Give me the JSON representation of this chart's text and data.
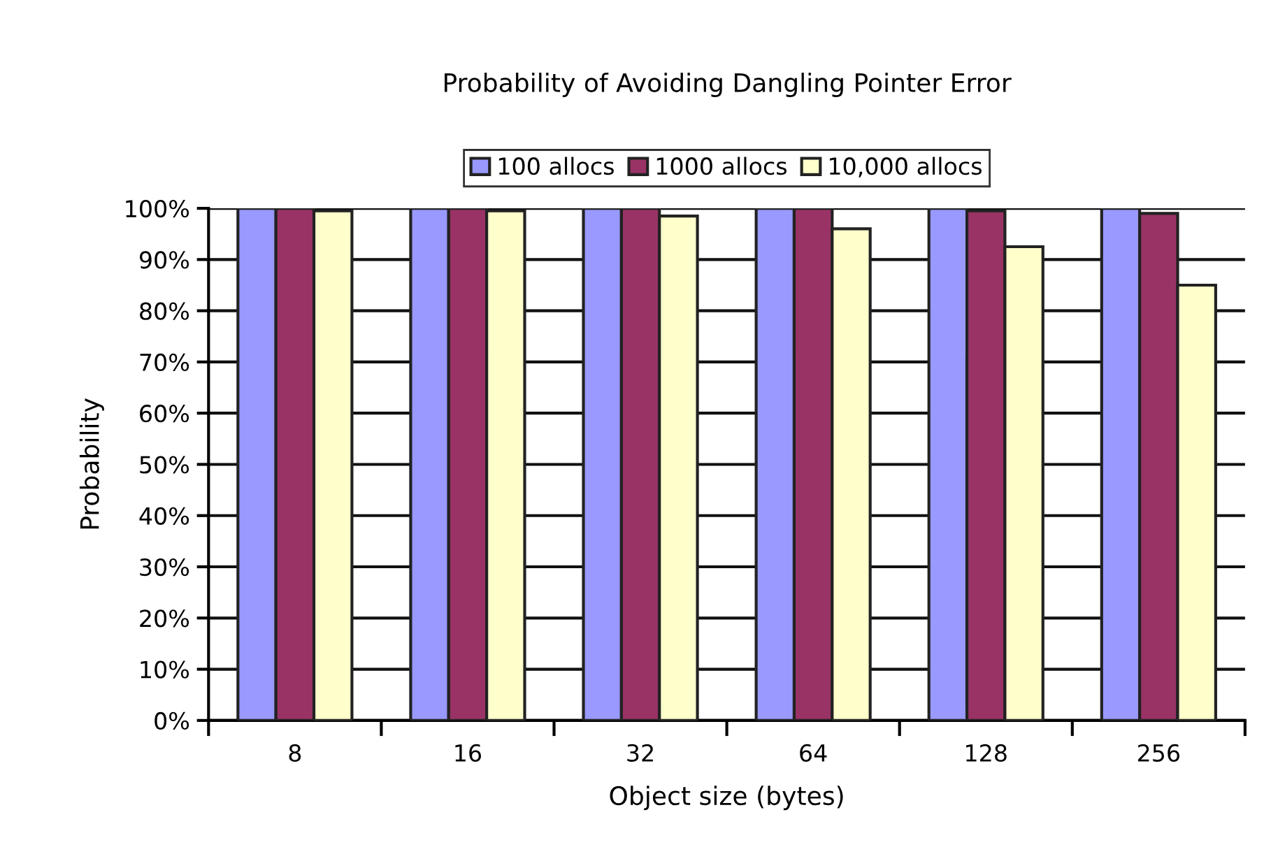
{
  "chart_data": {
    "type": "bar",
    "title": "Probability of Avoiding Dangling Pointer Error",
    "xlabel": "Object size (bytes)",
    "ylabel": "Probability",
    "categories": [
      "8",
      "16",
      "32",
      "64",
      "128",
      "256"
    ],
    "series": [
      {
        "name": "100 allocs",
        "color": "#9999ff",
        "values": [
          100,
          100,
          100,
          100,
          100,
          100
        ]
      },
      {
        "name": "1000 allocs",
        "color": "#993366",
        "values": [
          100,
          100,
          100,
          100,
          99.5,
          99
        ]
      },
      {
        "name": "10,000 allocs",
        "color": "#ffffcc",
        "values": [
          99.5,
          99.5,
          98.5,
          96,
          92.5,
          85
        ]
      }
    ],
    "ylim": [
      0,
      100
    ],
    "yticks": [
      {
        "value": 0,
        "label": "0%"
      },
      {
        "value": 10,
        "label": "10%"
      },
      {
        "value": 20,
        "label": "20%"
      },
      {
        "value": 30,
        "label": "30%"
      },
      {
        "value": 40,
        "label": "40%"
      },
      {
        "value": 50,
        "label": "50%"
      },
      {
        "value": 60,
        "label": "60%"
      },
      {
        "value": 70,
        "label": "70%"
      },
      {
        "value": 80,
        "label": "80%"
      },
      {
        "value": 90,
        "label": "90%"
      },
      {
        "value": 100,
        "label": "100%"
      }
    ],
    "grid": "y",
    "legend": "top"
  }
}
